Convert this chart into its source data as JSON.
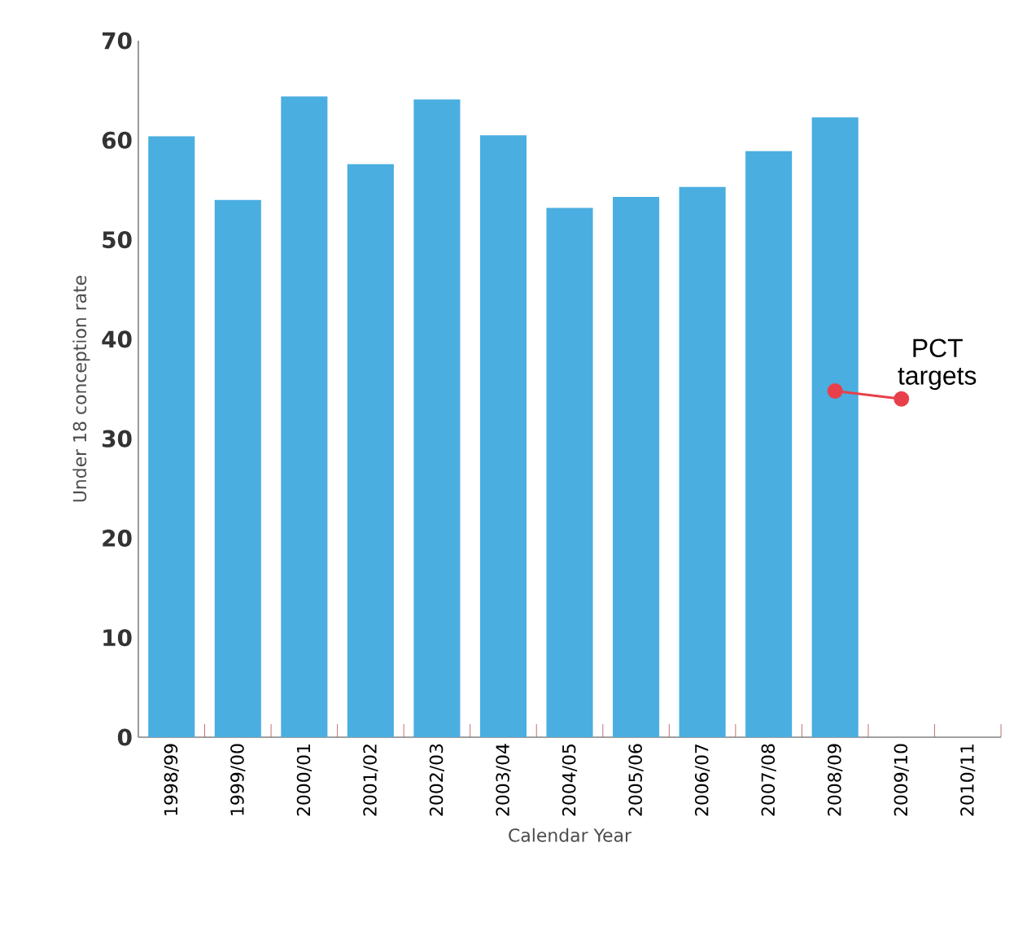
{
  "chart_data": {
    "type": "bar",
    "xlabel": "Calendar Year",
    "ylabel": "Under 18 conception rate",
    "categories": [
      "1998/99",
      "1999/00",
      "2000/01",
      "2001/02",
      "2002/03",
      "2003/04",
      "2004/05",
      "2005/06",
      "2006/07",
      "2007/08",
      "2008/09",
      "2009/10",
      "2010/11"
    ],
    "series": [
      {
        "color": "#4aaee0",
        "values": [
          60.4,
          54.0,
          64.4,
          57.6,
          64.1,
          60.5,
          53.2,
          54.3,
          55.3,
          58.9,
          62.3,
          null,
          null
        ]
      },
      {
        "type": "line",
        "name": "PCT targets",
        "color": "#e8404a",
        "marker": "circle",
        "line_style": "solid",
        "values": [
          null,
          null,
          null,
          null,
          null,
          null,
          null,
          null,
          null,
          null,
          34.8,
          34.0,
          null
        ]
      }
    ],
    "ylim": [
      0,
      70
    ],
    "yticks": [
      0,
      10,
      20,
      30,
      40,
      50,
      60,
      70
    ],
    "grid": false
  }
}
